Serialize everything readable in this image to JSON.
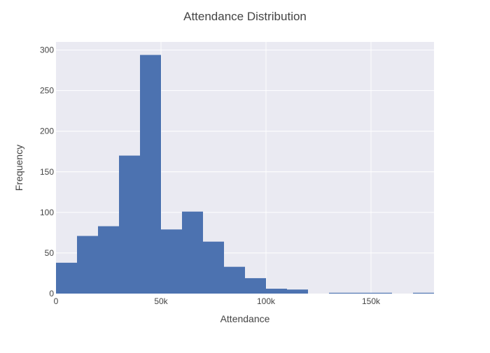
{
  "chart_data": {
    "type": "bar",
    "title": "Attendance Distribution",
    "xlabel": "Attendance",
    "ylabel": "Frequency",
    "xlim": [
      0,
      180000
    ],
    "ylim": [
      0,
      310
    ],
    "bin_width": 10000,
    "bins": [
      {
        "x0": 0,
        "x1": 10000,
        "count": 38
      },
      {
        "x0": 10000,
        "x1": 20000,
        "count": 71
      },
      {
        "x0": 20000,
        "x1": 30000,
        "count": 83
      },
      {
        "x0": 30000,
        "x1": 40000,
        "count": 170
      },
      {
        "x0": 40000,
        "x1": 50000,
        "count": 294
      },
      {
        "x0": 50000,
        "x1": 60000,
        "count": 79
      },
      {
        "x0": 60000,
        "x1": 70000,
        "count": 101
      },
      {
        "x0": 70000,
        "x1": 80000,
        "count": 64
      },
      {
        "x0": 80000,
        "x1": 90000,
        "count": 33
      },
      {
        "x0": 90000,
        "x1": 100000,
        "count": 19
      },
      {
        "x0": 100000,
        "x1": 110000,
        "count": 6
      },
      {
        "x0": 110000,
        "x1": 120000,
        "count": 5
      },
      {
        "x0": 120000,
        "x1": 130000,
        "count": 0
      },
      {
        "x0": 130000,
        "x1": 140000,
        "count": 1
      },
      {
        "x0": 140000,
        "x1": 150000,
        "count": 1
      },
      {
        "x0": 150000,
        "x1": 160000,
        "count": 1
      },
      {
        "x0": 160000,
        "x1": 170000,
        "count": 0
      },
      {
        "x0": 170000,
        "x1": 180000,
        "count": 1
      }
    ],
    "x_ticks": [
      {
        "value": 0,
        "label": "0"
      },
      {
        "value": 50000,
        "label": "50k"
      },
      {
        "value": 100000,
        "label": "100k"
      },
      {
        "value": 150000,
        "label": "150k"
      }
    ],
    "y_ticks": [
      {
        "value": 0,
        "label": "0"
      },
      {
        "value": 50,
        "label": "50"
      },
      {
        "value": 100,
        "label": "100"
      },
      {
        "value": 150,
        "label": "150"
      },
      {
        "value": 200,
        "label": "200"
      },
      {
        "value": 250,
        "label": "250"
      },
      {
        "value": 300,
        "label": "300"
      }
    ],
    "grid": true,
    "legend": "none",
    "colors": {
      "bar": "#4c72b0",
      "plot_background": "#eaeaf2",
      "grid": "#ffffff",
      "text": "#444444"
    }
  }
}
